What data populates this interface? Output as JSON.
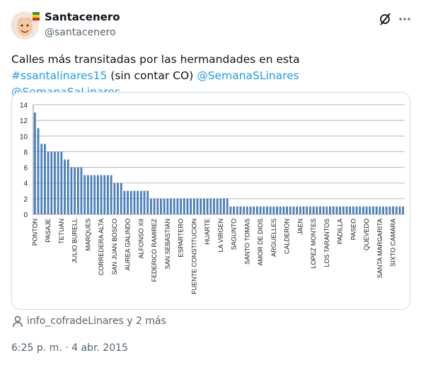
{
  "tweet": {
    "author": "Santacenero",
    "handle": "@santacenero",
    "text": [
      "Calles más transitadas por las hermandades en esta",
      "#ssantalinares15",
      "(sin contar CO)",
      "@SemanaSLinares",
      "@SemanaSaLinares"
    ],
    "tagged": "info_cofradeLinares y 2 más",
    "timestamp": "6:25 p. m. · 4 abr. 2015"
  },
  "chart_data": {
    "type": "bar",
    "color": "#4a7ebb",
    "grid": true,
    "ylim": [
      0,
      14
    ],
    "yticks": [
      0,
      2,
      4,
      6,
      8,
      10,
      12,
      14
    ],
    "categories": [
      "PONTON",
      null,
      null,
      null,
      "PASAJE",
      null,
      null,
      null,
      "TETUAN",
      null,
      null,
      null,
      "JULIO BURELL",
      null,
      null,
      null,
      "MARQUES",
      null,
      null,
      null,
      "CORREDERA ALTA",
      null,
      null,
      null,
      "SAN JUAN BOSCO",
      null,
      null,
      null,
      "AUREA GALINDO",
      null,
      null,
      null,
      "ALFONSO XII",
      null,
      null,
      null,
      "FEDERICO RAMIREZ",
      null,
      null,
      null,
      "SAN SEBASTIAN",
      null,
      null,
      null,
      "ESPARTERO",
      null,
      null,
      null,
      "FUENTE CONSTITUCION",
      null,
      null,
      null,
      "HUARTE",
      null,
      null,
      null,
      "LA VIRGEN",
      null,
      null,
      null,
      "SAGUNTO",
      null,
      null,
      null,
      "SANTO TOMAS",
      null,
      null,
      null,
      "AMOR DE DIOS",
      null,
      null,
      null,
      "ARGUELLES",
      null,
      null,
      null,
      "CALDERON",
      null,
      null,
      null,
      "JAEN",
      null,
      null,
      null,
      "LOPEZ MONTES",
      null,
      null,
      null,
      "LOS TARANTOS",
      null,
      null,
      null,
      "PADILLA",
      null,
      null,
      null,
      "PASEO",
      null,
      null,
      null,
      "QUEVEDO",
      null,
      null,
      null,
      "SANTA MARGARITA",
      null,
      null,
      null,
      "SIXTO CAMARA",
      null,
      null,
      null
    ],
    "values": [
      13,
      11,
      9,
      9,
      8,
      8,
      8,
      8,
      8,
      7,
      7,
      6,
      6,
      6,
      6,
      5,
      5,
      5,
      5,
      5,
      5,
      5,
      5,
      5,
      4,
      4,
      4,
      3,
      3,
      3,
      3,
      3,
      3,
      3,
      3,
      2,
      2,
      2,
      2,
      2,
      2,
      2,
      2,
      2,
      2,
      2,
      2,
      2,
      2,
      2,
      2,
      2,
      2,
      2,
      2,
      2,
      2,
      2,
      2,
      1,
      1,
      1,
      1,
      1,
      1,
      1,
      1,
      1,
      1,
      1,
      1,
      1,
      1,
      1,
      1,
      1,
      1,
      1,
      1,
      1,
      1,
      1,
      1,
      1,
      1,
      1,
      1,
      1,
      1,
      1,
      1,
      1,
      1,
      1,
      1,
      1,
      1,
      1,
      1,
      1,
      1,
      1,
      1,
      1,
      1,
      1,
      1,
      1,
      1,
      1,
      1,
      1
    ]
  }
}
